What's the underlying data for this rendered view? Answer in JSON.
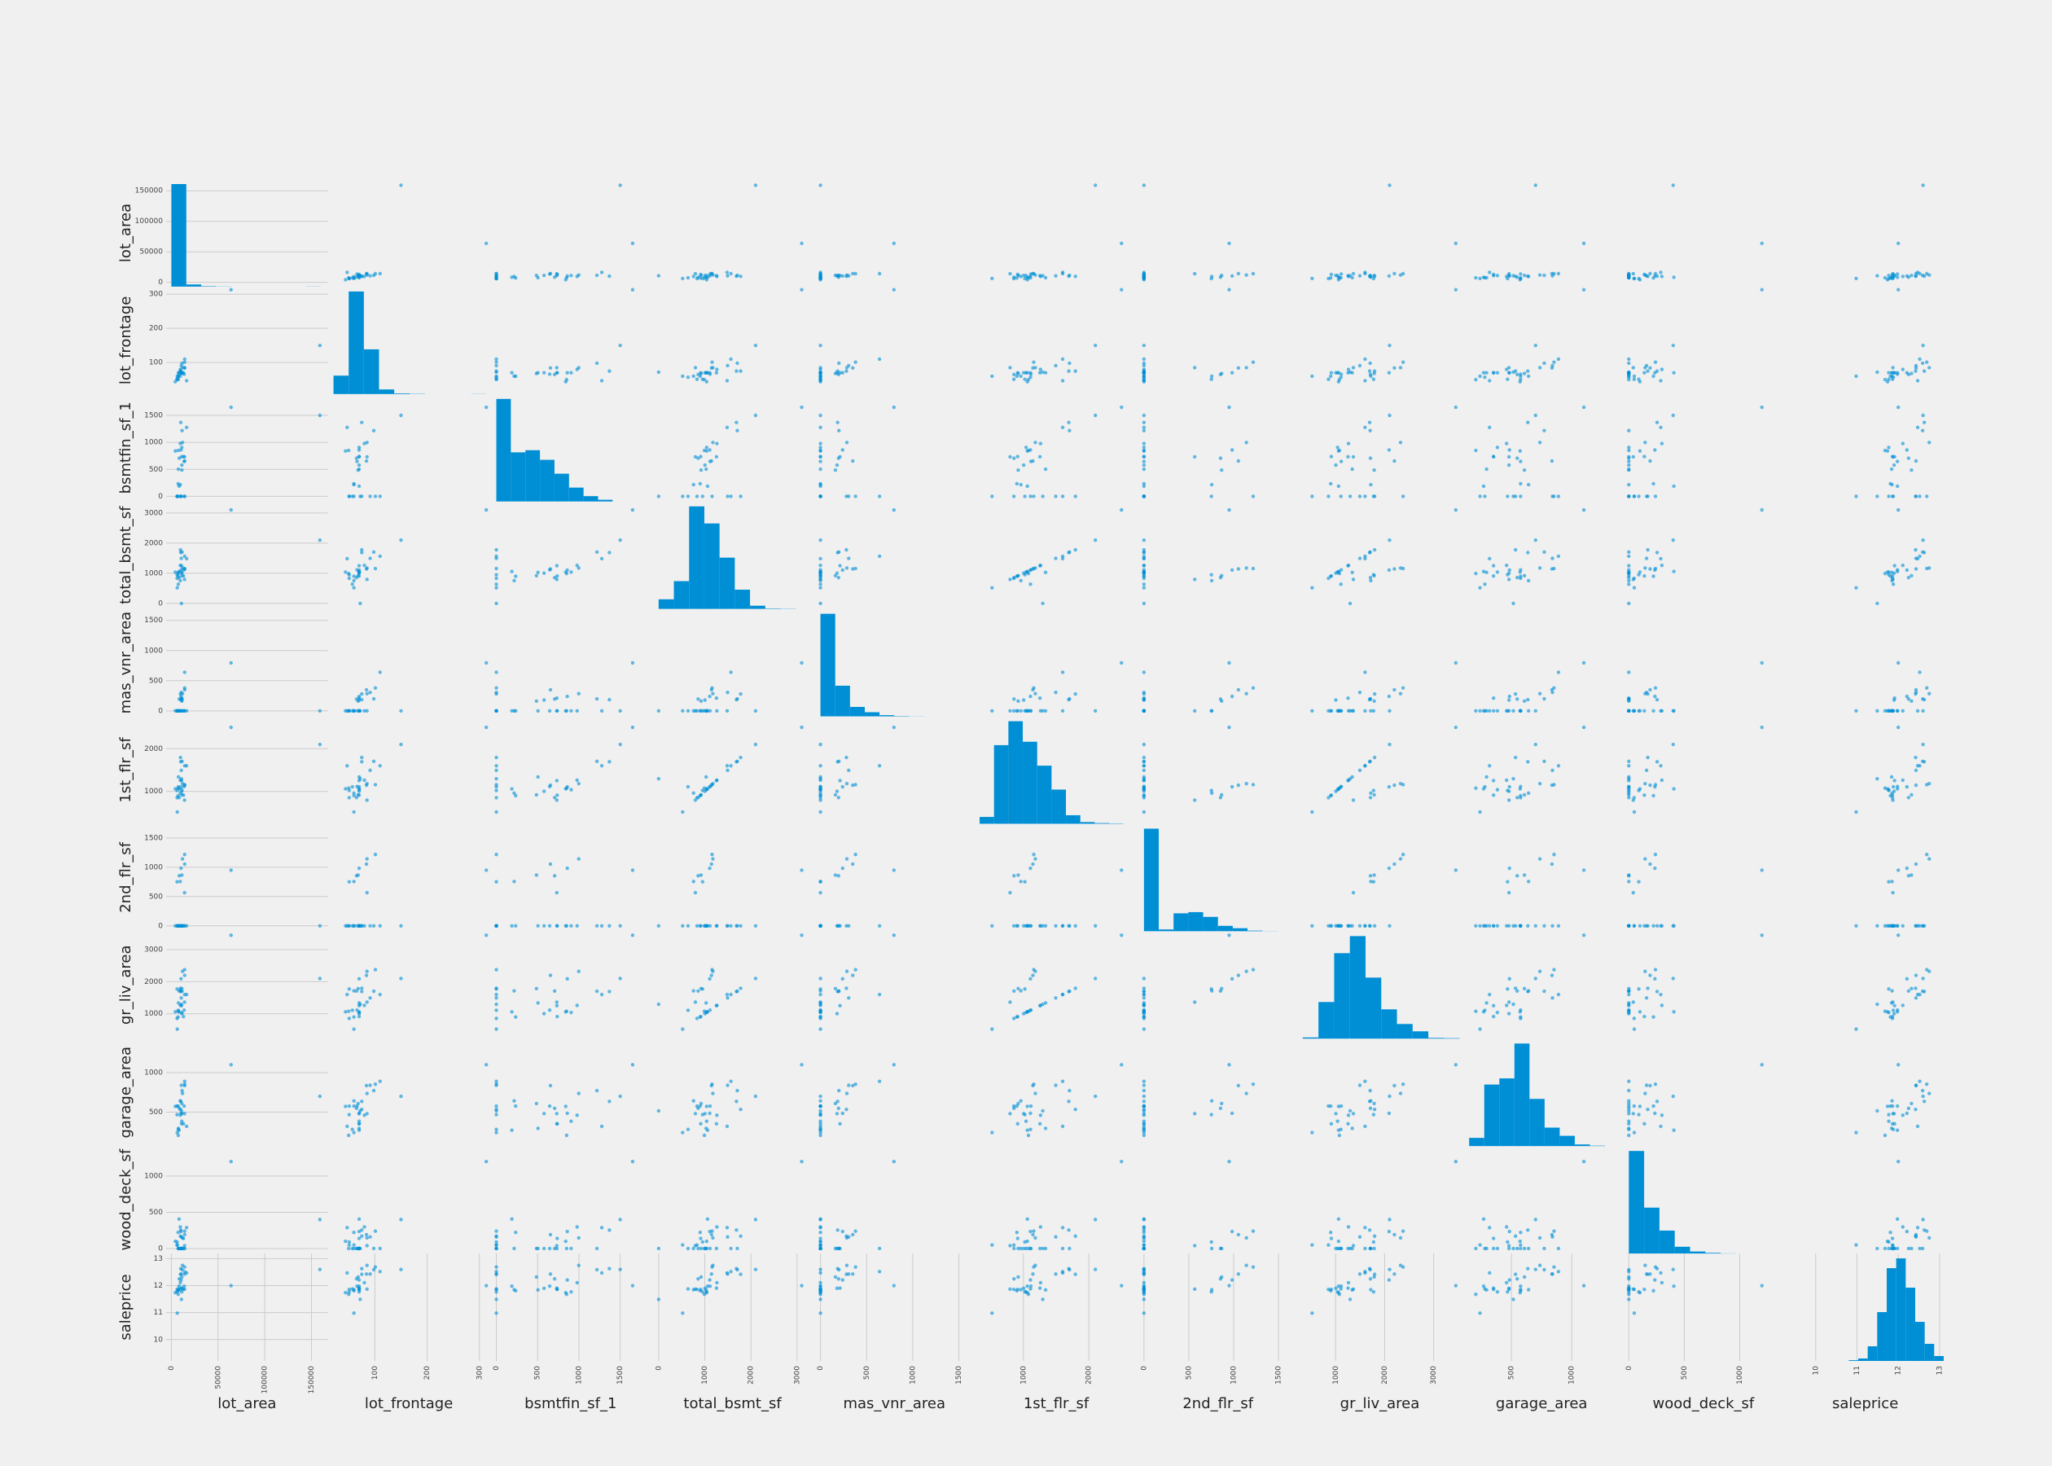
{
  "chart_data": {
    "type": "scatter_matrix",
    "color": "#008fd5",
    "variables": [
      {
        "name": "lot_area",
        "lim": [
          -3000,
          165000
        ],
        "ticks": [
          0,
          50000,
          100000,
          150000
        ],
        "bins": [
          0,
          16000,
          32000,
          48000,
          64000,
          80000,
          96000,
          112000,
          128000,
          144000,
          160000
        ],
        "counts": [
          1420,
          30,
          6,
          2,
          0,
          0,
          0,
          0,
          0,
          2
        ]
      },
      {
        "name": "lot_frontage",
        "lim": [
          15,
          315
        ],
        "ticks": [
          100,
          200,
          300
        ],
        "bins": [
          21,
          50,
          79,
          108,
          137,
          167,
          196,
          225,
          254,
          284,
          313
        ],
        "counts": [
          140,
          780,
          340,
          35,
          5,
          2,
          0,
          0,
          0,
          1
        ]
      },
      {
        "name": "bsmtfin_sf_1",
        "lim": [
          -50,
          1850
        ],
        "ticks": [
          0,
          500,
          1000,
          1500
        ],
        "bins": [
          0,
          176,
          352,
          528,
          704,
          880,
          1056,
          1232,
          1408,
          1584,
          1760
        ],
        "counts": [
          480,
          230,
          240,
          195,
          130,
          65,
          25,
          8,
          0,
          0
        ]
      },
      {
        "name": "total_bsmt_sf",
        "lim": [
          -100,
          3300
        ],
        "ticks": [
          0,
          1000,
          2000,
          3000
        ],
        "bins": [
          0,
          330,
          660,
          990,
          1320,
          1650,
          1980,
          2310,
          2640,
          2970,
          3300
        ],
        "counts": [
          45,
          130,
          480,
          400,
          240,
          90,
          15,
          2,
          1,
          0
        ]
      },
      {
        "name": "mas_vnr_area",
        "lim": [
          -50,
          1650
        ],
        "ticks": [
          0,
          500,
          1000,
          1500
        ],
        "bins": [
          0,
          160,
          320,
          480,
          640,
          800,
          960,
          1120,
          1280,
          1440,
          1600
        ],
        "counts": [
          870,
          260,
          80,
          35,
          10,
          3,
          1,
          0,
          0,
          0
        ]
      },
      {
        "name": "1st_flr_sf",
        "lim": [
          300,
          2700
        ],
        "ticks": [
          1000,
          2000
        ],
        "bins": [
          330,
          550,
          770,
          990,
          1210,
          1430,
          1650,
          1870,
          2090,
          2310,
          2530
        ],
        "counts": [
          20,
          230,
          300,
          240,
          170,
          100,
          25,
          5,
          2,
          1
        ]
      },
      {
        "name": "2nd_flr_sf",
        "lim": [
          -50,
          1700
        ],
        "ticks": [
          0,
          500,
          1000,
          1500
        ],
        "bins": [
          0,
          165,
          330,
          495,
          660,
          825,
          990,
          1155,
          1320,
          1485,
          1650
        ],
        "counts": [
          860,
          15,
          150,
          160,
          120,
          45,
          25,
          5,
          1,
          0
        ]
      },
      {
        "name": "gr_liv_area",
        "lim": [
          300,
          3500
        ],
        "ticks": [
          1000,
          2000,
          3000
        ],
        "bins": [
          330,
          650,
          970,
          1290,
          1610,
          1930,
          2250,
          2570,
          2890,
          3210,
          3530
        ],
        "counts": [
          5,
          150,
          350,
          420,
          250,
          120,
          60,
          30,
          3,
          2
        ]
      },
      {
        "name": "garage_area",
        "lim": [
          100,
          1400
        ],
        "ticks": [
          500,
          1000
        ],
        "bins": [
          150,
          275,
          400,
          525,
          650,
          775,
          900,
          1025,
          1150,
          1275,
          1400
        ],
        "counts": [
          40,
          300,
          330,
          500,
          230,
          90,
          50,
          8,
          2,
          0
        ]
      },
      {
        "name": "wood_deck_sf",
        "lim": [
          -35,
          1380
        ],
        "ticks": [
          0,
          500,
          1000
        ],
        "bins": [
          0,
          138,
          276,
          414,
          552,
          690,
          828,
          966,
          1104,
          1242,
          1380
        ],
        "counts": [
          760,
          340,
          170,
          50,
          15,
          5,
          1,
          0,
          0,
          0
        ]
      },
      {
        "name": "saleprice",
        "lim": [
          9.3,
          13.1
        ],
        "ticks": [
          10,
          11,
          12,
          13
        ],
        "bins": [
          10.8,
          11.03,
          11.26,
          11.49,
          11.72,
          11.95,
          12.18,
          12.41,
          12.64,
          12.87,
          13.1
        ],
        "counts": [
          3,
          10,
          60,
          200,
          380,
          420,
          300,
          160,
          70,
          20
        ]
      }
    ],
    "rows": [
      [
        8450,
        65,
        706,
        856,
        196,
        856,
        854,
        1710,
        548,
        0,
        12.25
      ],
      [
        9600,
        80,
        978,
        1262,
        0,
        1262,
        0,
        1262,
        460,
        298,
        12.11
      ],
      [
        11250,
        68,
        486,
        920,
        162,
        920,
        866,
        1786,
        608,
        0,
        12.32
      ],
      [
        9550,
        60,
        216,
        756,
        0,
        961,
        756,
        1717,
        642,
        0,
        11.85
      ],
      [
        14260,
        84,
        655,
        1145,
        350,
        1145,
        1053,
        2198,
        836,
        192,
        12.43
      ],
      [
        14115,
        85,
        732,
        796,
        0,
        796,
        566,
        1362,
        480,
        40,
        11.87
      ],
      [
        10084,
        75,
        1369,
        1686,
        186,
        1694,
        0,
        1694,
        636,
        255,
        12.63
      ],
      [
        10382,
        70,
        859,
        1107,
        240,
        1107,
        983,
        2090,
        484,
        235,
        12.21
      ],
      [
        6120,
        51,
        0,
        952,
        0,
        1022,
        752,
        1774,
        468,
        90,
        11.77
      ],
      [
        7420,
        50,
        851,
        991,
        0,
        1077,
        0,
        1077,
        205,
        0,
        11.68
      ],
      [
        11200,
        70,
        906,
        1040,
        0,
        1040,
        0,
        1040,
        384,
        0,
        11.77
      ],
      [
        11924,
        85,
        998,
        1175,
        286,
        1182,
        1142,
        2324,
        736,
        147,
        12.75
      ],
      [
        12968,
        70,
        737,
        912,
        0,
        912,
        0,
        912,
        352,
        140,
        11.86
      ],
      [
        10652,
        91,
        0,
        1494,
        306,
        1494,
        0,
        1494,
        840,
        160,
        12.43
      ],
      [
        10920,
        70,
        733,
        1253,
        212,
        1253,
        0,
        1253,
        352,
        0,
        11.91
      ],
      [
        6120,
        51,
        0,
        832,
        0,
        854,
        0,
        854,
        576,
        48,
        11.86
      ],
      [
        11241,
        70,
        578,
        1004,
        180,
        1004,
        0,
        1004,
        480,
        0,
        11.9
      ],
      [
        10791,
        72,
        0,
        0,
        0,
        1296,
        0,
        1296,
        516,
        0,
        11.49
      ],
      [
        13695,
        66,
        646,
        1114,
        0,
        1114,
        0,
        1114,
        576,
        0,
        11.98
      ],
      [
        7560,
        70,
        504,
        1029,
        0,
        1339,
        0,
        1339,
        294,
        0,
        11.84
      ],
      [
        14215,
        101,
        0,
        1158,
        380,
        1158,
        1218,
        2376,
        853,
        240,
        12.69
      ],
      [
        7449,
        57,
        0,
        637,
        0,
        1108,
        0,
        1108,
        280,
        0,
        11.88
      ],
      [
        9742,
        75,
        0,
        1777,
        281,
        1795,
        0,
        1795,
        534,
        171,
        12.42
      ],
      [
        4224,
        44,
        840,
        1040,
        0,
        1060,
        0,
        1060,
        572,
        100,
        11.74
      ],
      [
        8246,
        70,
        188,
        1060,
        0,
        1060,
        0,
        1060,
        270,
        406,
        11.98
      ],
      [
        14230,
        110,
        0,
        1566,
        640,
        1600,
        0,
        1600,
        890,
        0,
        12.52
      ],
      [
        7200,
        60,
        234,
        900,
        0,
        900,
        0,
        900,
        576,
        222,
        11.81
      ],
      [
        11478,
        98,
        1218,
        1704,
        200,
        1704,
        0,
        1704,
        772,
        0,
        12.59
      ],
      [
        16321,
        47,
        1277,
        1484,
        0,
        1600,
        0,
        1600,
        319,
        288,
        12.47
      ],
      [
        6324,
        60,
        0,
        520,
        0,
        520,
        0,
        520,
        240,
        49,
        10.98
      ],
      [
        159000,
        150,
        1500,
        2100,
        0,
        2100,
        0,
        2100,
        700,
        400,
        12.6
      ],
      [
        63887,
        313,
        1650,
        3100,
        796,
        2500,
        950,
        3450,
        1100,
        1200,
        12.0
      ]
    ]
  }
}
